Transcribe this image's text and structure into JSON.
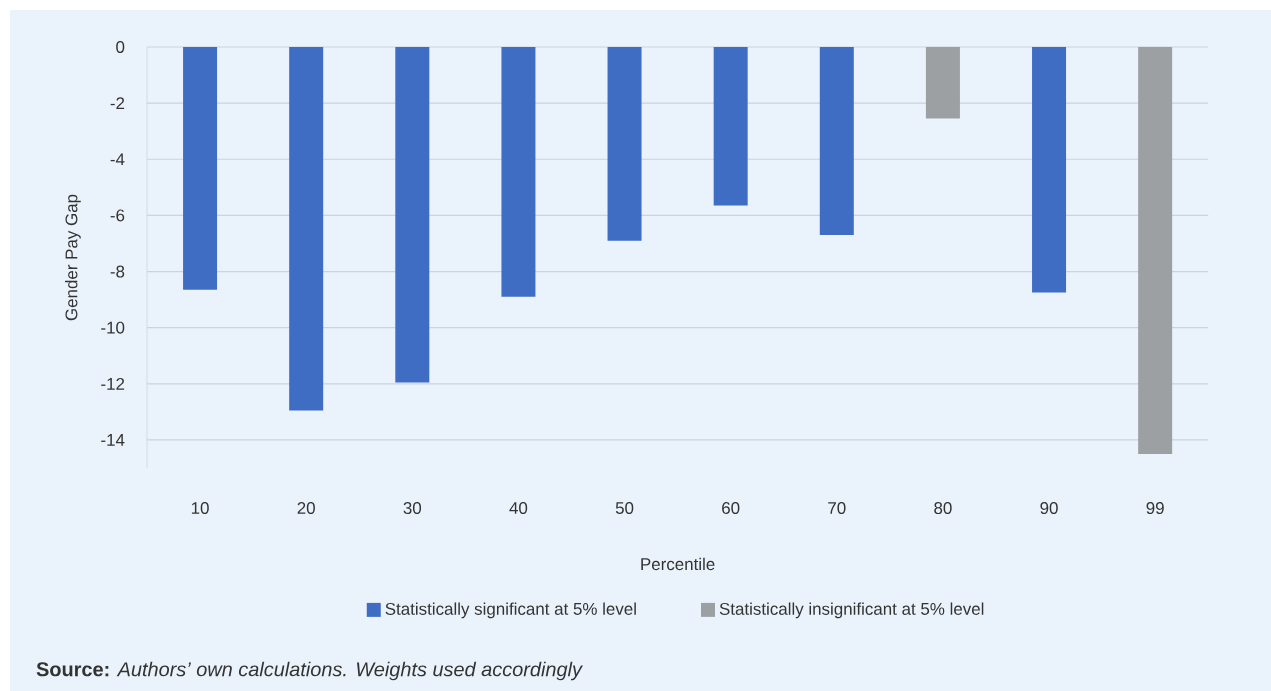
{
  "chart_data": {
    "type": "bar",
    "xlabel": "Percentile",
    "ylabel": "Gender Pay Gap",
    "categories": [
      "10",
      "20",
      "30",
      "40",
      "50",
      "60",
      "70",
      "80",
      "90",
      "99"
    ],
    "series": [
      {
        "name": "Statistically significant at 5% level",
        "color": "#3f6dc3",
        "values": [
          -8.65,
          -12.95,
          -11.95,
          -8.9,
          -6.9,
          -5.65,
          -6.7,
          null,
          -8.75,
          null
        ]
      },
      {
        "name": "Statistically insignificant at 5% level",
        "color": "#9da0a3",
        "values": [
          null,
          null,
          null,
          null,
          null,
          null,
          null,
          -2.55,
          null,
          -14.5
        ]
      }
    ],
    "ylim": [
      -15,
      0
    ],
    "yticks": [
      0,
      -2,
      -4,
      -6,
      -8,
      -10,
      -12,
      -14
    ],
    "grid": "y",
    "legend": "bottom",
    "annotations": [
      "**Source:** *Authors’ own calculations. Weights used accordingly*"
    ]
  }
}
